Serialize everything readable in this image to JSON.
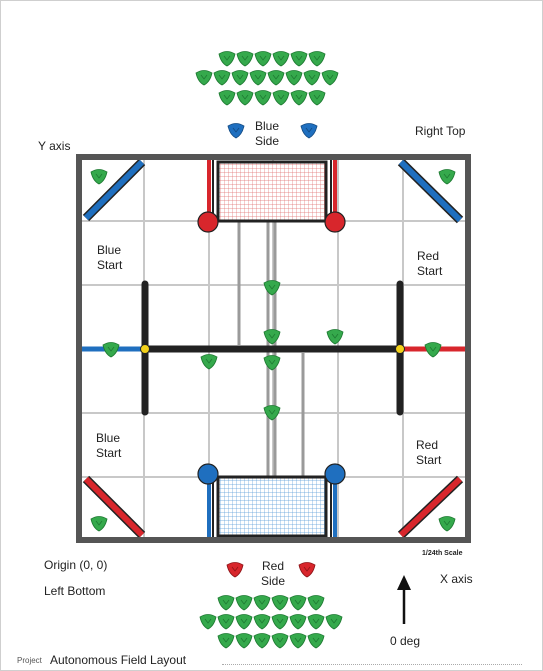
{
  "labels": {
    "blue_side": "Blue\nSide",
    "right_top": "Right Top",
    "y_axis": "Y axis",
    "blue_start_top": "Blue\nStart",
    "red_start_top": "Red\nStart",
    "blue_start_bottom": "Blue\nStart",
    "red_start_bottom": "Red\nStart",
    "scale": "1/24th Scale",
    "origin": "Origin (0, 0)",
    "red_side": "Red\nSide",
    "x_axis": "X axis",
    "left_bottom": "Left Bottom",
    "angle": "0 deg"
  },
  "footer": {
    "project_key": "Project",
    "project_name": "Autonomous Field Layout"
  },
  "colors": {
    "blue": "#1f6fbf",
    "red": "#d8262c",
    "green": "#35a94c",
    "yellow": "#f4d21a",
    "barrier": "#222222",
    "tile_line": "#c8c8c8"
  },
  "icons": {
    "triball": "triball-icon",
    "arrow": "up-arrow-icon"
  }
}
